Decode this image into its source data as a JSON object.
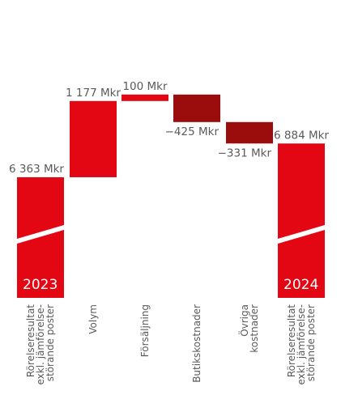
{
  "chart_data": {
    "type": "bar",
    "categories": [
      [
        "Rörelseresultat",
        "exkl. jämförelse-",
        "störande poster"
      ],
      [
        "Volym"
      ],
      [
        "Försäljning"
      ],
      [
        "Butikskostnader"
      ],
      [
        "Övriga",
        "kostnader"
      ],
      [
        "Rörelseresultat",
        "exkl. jämförelse-",
        "störande poster"
      ]
    ],
    "values": [
      6363,
      1177,
      100,
      -425,
      -331,
      6884
    ],
    "value_labels": [
      "6 363 Mkr",
      "1 177 Mkr",
      "100 Mkr",
      "−425 Mkr",
      "−331 Mkr",
      "6 884 Mkr"
    ],
    "year_labels": [
      "2023",
      "",
      "",
      "",
      "",
      "2024"
    ],
    "kinds": [
      "total",
      "increase",
      "increase",
      "decrease",
      "decrease",
      "total"
    ],
    "colors": {
      "total": "#e30613",
      "increase": "#e30613",
      "decrease": "#9b0c0c"
    }
  }
}
